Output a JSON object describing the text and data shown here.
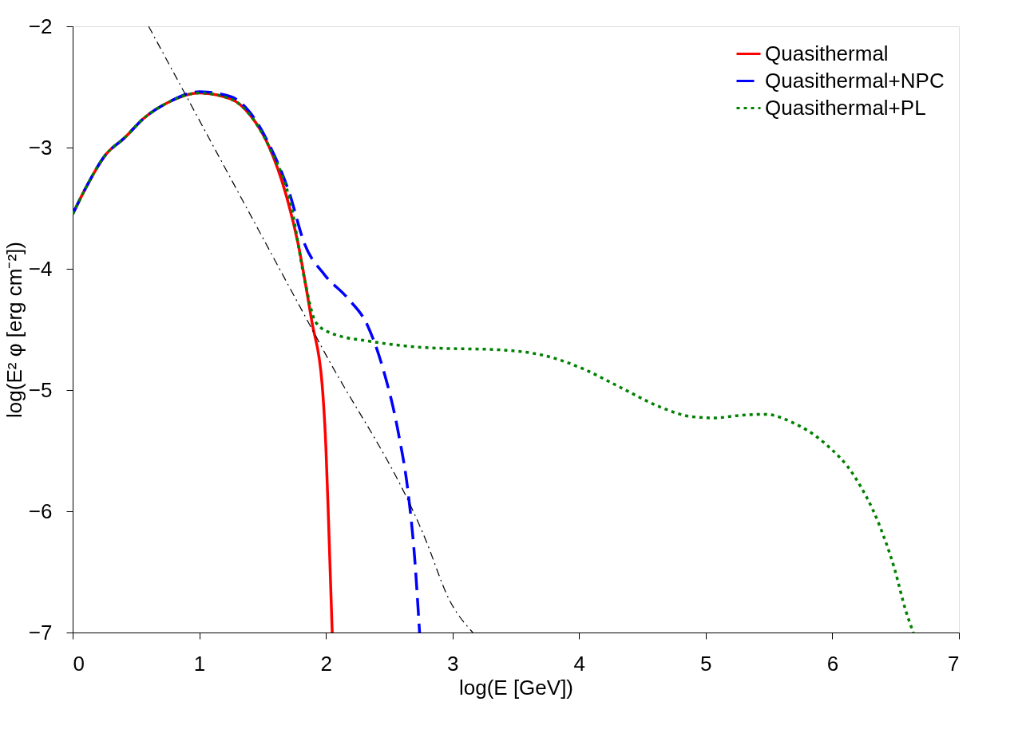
{
  "chart_data": {
    "type": "line",
    "xlabel": "log(E [GeV])",
    "ylabel": "log(E² φ [erg cm⁻²])",
    "xlim": [
      0,
      7
    ],
    "ylim": [
      -7,
      -2
    ],
    "xticks": [
      0,
      1,
      2,
      3,
      4,
      5,
      6,
      7
    ],
    "yticks": [
      -7,
      -6,
      -5,
      -4,
      -3,
      -2
    ],
    "grid": false,
    "legend": "top right",
    "marker": "none",
    "series": [
      {
        "name": "Quasithermal",
        "color": "#ff0000",
        "line_style": "solid",
        "x": [
          0,
          0.1,
          0.26,
          0.41,
          0.56,
          0.75,
          1.0,
          1.25,
          1.4,
          1.55,
          1.68,
          1.78,
          1.89,
          1.97,
          2.0,
          2.02,
          2.05
        ],
        "values": [
          -3.55,
          -3.34,
          -3.06,
          -2.92,
          -2.76,
          -2.63,
          -2.55,
          -2.6,
          -2.73,
          -2.99,
          -3.37,
          -3.79,
          -4.44,
          -4.95,
          -5.47,
          -6.05,
          -7
        ]
      },
      {
        "name": "Quasithermal+NPC",
        "color": "#0000ff",
        "line_style": "dashed",
        "x": [
          0,
          0.1,
          0.26,
          0.41,
          0.56,
          0.75,
          1.0,
          1.25,
          1.4,
          1.55,
          1.71,
          1.83,
          1.99,
          2.17,
          2.33,
          2.45,
          2.57,
          2.65,
          2.7,
          2.74
        ],
        "values": [
          -3.55,
          -3.34,
          -3.06,
          -2.92,
          -2.76,
          -2.63,
          -2.54,
          -2.58,
          -2.71,
          -2.97,
          -3.37,
          -3.79,
          -4.05,
          -4.24,
          -4.47,
          -4.82,
          -5.34,
          -5.85,
          -6.37,
          -7
        ]
      },
      {
        "name": "Quasithermal+PL",
        "color": "#008000",
        "line_style": "dotted",
        "x": [
          0,
          0.1,
          0.26,
          0.41,
          0.56,
          0.75,
          1.0,
          1.25,
          1.4,
          1.55,
          1.73,
          1.83,
          1.92,
          2.04,
          2.36,
          2.79,
          3.4,
          3.78,
          4.02,
          4.33,
          4.64,
          4.89,
          5.07,
          5.26,
          5.47,
          5.69,
          5.93,
          6.18,
          6.37,
          6.49,
          6.58,
          6.64
        ],
        "values": [
          -3.55,
          -3.34,
          -3.06,
          -2.92,
          -2.76,
          -2.63,
          -2.55,
          -2.6,
          -2.73,
          -2.99,
          -3.5,
          -4.08,
          -4.44,
          -4.53,
          -4.6,
          -4.65,
          -4.67,
          -4.73,
          -4.82,
          -4.98,
          -5.14,
          -5.22,
          -5.23,
          -5.21,
          -5.2,
          -5.27,
          -5.43,
          -5.72,
          -6.11,
          -6.47,
          -6.82,
          -7
        ]
      },
      {
        "color": "#000000",
        "line_style": "dashed",
        "x": [
          0.6,
          1.99,
          2.79,
          2.97,
          3.16
        ],
        "values": [
          -2,
          -4.69,
          -6.24,
          -6.72,
          -7
        ]
      }
    ]
  }
}
